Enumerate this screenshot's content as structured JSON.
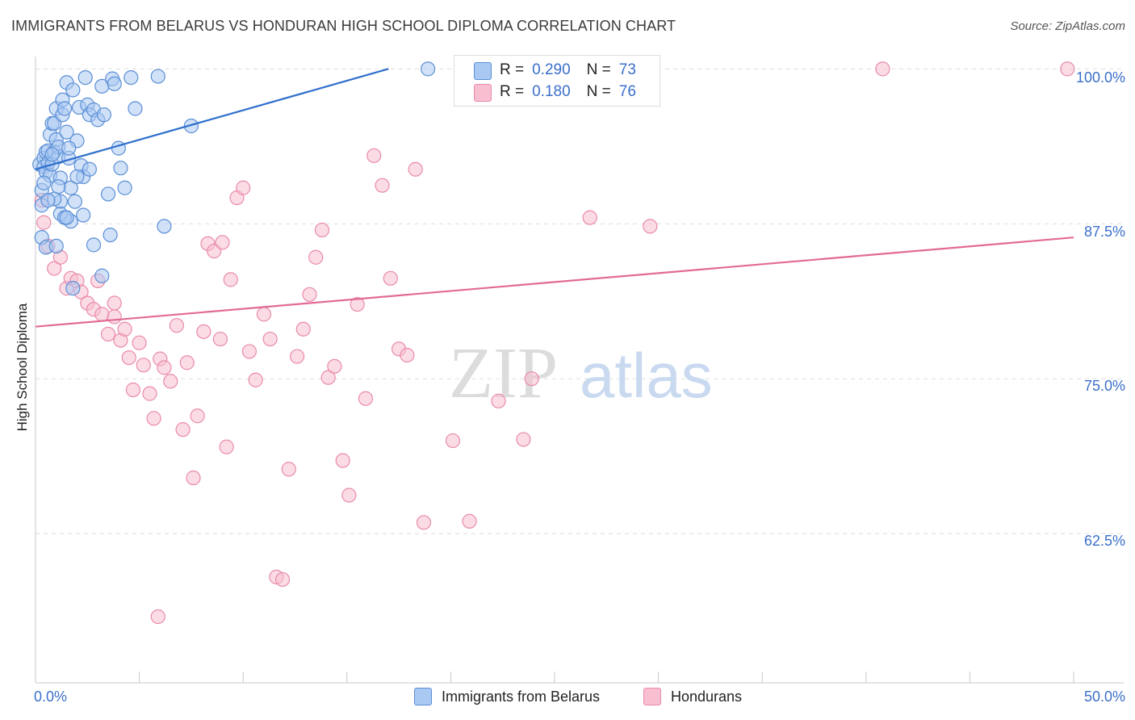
{
  "header": {
    "title": "IMMIGRANTS FROM BELARUS VS HONDURAN HIGH SCHOOL DIPLOMA CORRELATION CHART",
    "source": "Source: ZipAtlas.com"
  },
  "watermark": {
    "zip": "ZIP",
    "atlas": "atlas"
  },
  "stats": {
    "row1": {
      "r_label": "R =",
      "r_value": "0.290",
      "n_label": "N =",
      "n_value": "73"
    },
    "row2": {
      "r_label": "R =",
      "r_value": "0.180",
      "n_label": "N =",
      "n_value": "76"
    }
  },
  "legend": {
    "item1": "Immigrants from Belarus",
    "item2": "Hondurans"
  },
  "axes": {
    "ylabel": "High School Diploma",
    "x_min_label": "0.0%",
    "x_max_label": "50.0%",
    "y_ticks": [
      "100.0%",
      "87.5%",
      "75.0%",
      "62.5%"
    ]
  },
  "colors": {
    "blue_fill": "#a9c8f2",
    "blue_stroke": "#5b8fd6",
    "blue_line": "#2e6fcc",
    "pink_fill": "#f7bfd0",
    "pink_stroke": "#e98aaa",
    "pink_line": "#e26a95",
    "tick_text": "#3b6fc9"
  },
  "chart_data": {
    "type": "scatter",
    "title": "IMMIGRANTS FROM BELARUS VS HONDURAN HIGH SCHOOL DIPLOMA CORRELATION CHART",
    "xlabel": "",
    "ylabel": "High School Diploma",
    "xlim": [
      0,
      50
    ],
    "ylim": [
      51.5,
      101
    ],
    "y_gridlines": [
      62.5,
      75.0,
      87.5,
      100.0
    ],
    "grid": true,
    "legend_position": "bottom",
    "series": [
      {
        "name": "Immigrants from Belarus",
        "color": "#a9c8f2",
        "trend": {
          "x": [
            0.0,
            17.0
          ],
          "y": [
            91.9,
            100.0
          ]
        },
        "points": [
          [
            0.2,
            92.3
          ],
          [
            0.3,
            90.2
          ],
          [
            0.3,
            89.0
          ],
          [
            0.4,
            92.8
          ],
          [
            0.4,
            92.1
          ],
          [
            0.5,
            93.3
          ],
          [
            0.5,
            91.7
          ],
          [
            0.6,
            92.4
          ],
          [
            0.6,
            93.4
          ],
          [
            0.7,
            91.4
          ],
          [
            0.7,
            94.7
          ],
          [
            0.8,
            95.6
          ],
          [
            0.8,
            92.3
          ],
          [
            0.9,
            93.3
          ],
          [
            0.9,
            95.6
          ],
          [
            1.0,
            96.8
          ],
          [
            1.0,
            94.3
          ],
          [
            1.1,
            92.9
          ],
          [
            1.1,
            93.7
          ],
          [
            1.2,
            89.3
          ],
          [
            1.2,
            91.2
          ],
          [
            1.3,
            97.5
          ],
          [
            1.3,
            96.3
          ],
          [
            1.4,
            96.8
          ],
          [
            1.5,
            98.9
          ],
          [
            1.5,
            94.9
          ],
          [
            1.6,
            92.8
          ],
          [
            1.7,
            90.4
          ],
          [
            1.7,
            87.7
          ],
          [
            1.8,
            98.3
          ],
          [
            1.9,
            89.3
          ],
          [
            2.0,
            94.2
          ],
          [
            2.1,
            96.9
          ],
          [
            2.2,
            92.2
          ],
          [
            2.3,
            91.3
          ],
          [
            2.4,
            99.3
          ],
          [
            2.5,
            97.1
          ],
          [
            2.6,
            96.3
          ],
          [
            2.8,
            96.7
          ],
          [
            3.0,
            95.9
          ],
          [
            3.2,
            98.6
          ],
          [
            3.3,
            96.3
          ],
          [
            3.5,
            89.9
          ],
          [
            3.7,
            99.2
          ],
          [
            3.8,
            98.8
          ],
          [
            4.0,
            93.6
          ],
          [
            4.1,
            92.0
          ],
          [
            4.3,
            90.4
          ],
          [
            4.6,
            99.3
          ],
          [
            4.8,
            96.8
          ],
          [
            5.9,
            99.4
          ],
          [
            6.2,
            87.3
          ],
          [
            7.5,
            95.4
          ],
          [
            18.9,
            100.0
          ],
          [
            0.3,
            86.4
          ],
          [
            0.5,
            85.6
          ],
          [
            1.0,
            85.7
          ],
          [
            1.2,
            88.3
          ],
          [
            1.4,
            88.0
          ],
          [
            1.8,
            82.3
          ],
          [
            2.3,
            88.2
          ],
          [
            2.8,
            85.8
          ],
          [
            3.2,
            83.3
          ],
          [
            3.6,
            86.6
          ],
          [
            0.8,
            93.1
          ],
          [
            1.6,
            93.6
          ],
          [
            2.0,
            91.3
          ],
          [
            0.4,
            90.8
          ],
          [
            0.9,
            89.5
          ],
          [
            1.5,
            88.0
          ],
          [
            2.6,
            91.9
          ],
          [
            0.6,
            89.4
          ],
          [
            1.1,
            90.5
          ]
        ]
      },
      {
        "name": "Hondurans",
        "color": "#f7bfd0",
        "trend": {
          "x": [
            0.0,
            50.0
          ],
          "y": [
            79.2,
            86.4
          ]
        },
        "points": [
          [
            0.3,
            89.4
          ],
          [
            0.4,
            87.6
          ],
          [
            0.6,
            85.7
          ],
          [
            0.9,
            83.9
          ],
          [
            1.2,
            84.8
          ],
          [
            1.5,
            82.3
          ],
          [
            1.7,
            83.1
          ],
          [
            2.0,
            82.9
          ],
          [
            2.2,
            82.0
          ],
          [
            2.5,
            81.1
          ],
          [
            2.8,
            80.6
          ],
          [
            3.0,
            82.9
          ],
          [
            3.2,
            80.2
          ],
          [
            3.5,
            78.6
          ],
          [
            3.8,
            80.0
          ],
          [
            4.1,
            78.1
          ],
          [
            4.3,
            79.0
          ],
          [
            4.5,
            76.7
          ],
          [
            4.7,
            74.1
          ],
          [
            5.0,
            77.9
          ],
          [
            5.2,
            76.1
          ],
          [
            5.5,
            73.8
          ],
          [
            5.7,
            71.8
          ],
          [
            6.0,
            76.6
          ],
          [
            6.2,
            75.9
          ],
          [
            6.5,
            74.8
          ],
          [
            6.8,
            79.3
          ],
          [
            7.1,
            70.9
          ],
          [
            7.3,
            76.3
          ],
          [
            7.6,
            67.0
          ],
          [
            7.8,
            72.0
          ],
          [
            8.1,
            78.8
          ],
          [
            8.3,
            85.9
          ],
          [
            8.6,
            85.3
          ],
          [
            8.9,
            78.2
          ],
          [
            9.2,
            69.5
          ],
          [
            9.4,
            83.0
          ],
          [
            9.7,
            89.6
          ],
          [
            10.0,
            90.4
          ],
          [
            10.3,
            77.2
          ],
          [
            10.6,
            74.9
          ],
          [
            11.0,
            80.2
          ],
          [
            11.3,
            78.2
          ],
          [
            11.6,
            59.0
          ],
          [
            11.9,
            58.8
          ],
          [
            12.2,
            67.7
          ],
          [
            12.6,
            76.8
          ],
          [
            12.9,
            79.0
          ],
          [
            13.2,
            81.8
          ],
          [
            13.5,
            84.8
          ],
          [
            13.8,
            87.0
          ],
          [
            14.1,
            75.1
          ],
          [
            14.4,
            76.0
          ],
          [
            14.8,
            68.4
          ],
          [
            15.1,
            65.6
          ],
          [
            15.5,
            81.0
          ],
          [
            15.9,
            73.4
          ],
          [
            16.3,
            93.0
          ],
          [
            16.7,
            90.6
          ],
          [
            17.1,
            83.1
          ],
          [
            17.5,
            77.4
          ],
          [
            17.9,
            76.9
          ],
          [
            18.3,
            91.9
          ],
          [
            18.7,
            63.4
          ],
          [
            20.1,
            70.0
          ],
          [
            20.9,
            63.5
          ],
          [
            22.3,
            73.2
          ],
          [
            23.5,
            70.1
          ],
          [
            23.9,
            75.0
          ],
          [
            26.7,
            88.0
          ],
          [
            29.6,
            87.3
          ],
          [
            40.8,
            100.0
          ],
          [
            49.7,
            100.0
          ],
          [
            5.9,
            55.8
          ],
          [
            9.0,
            86.0
          ],
          [
            3.8,
            81.1
          ]
        ]
      }
    ]
  }
}
